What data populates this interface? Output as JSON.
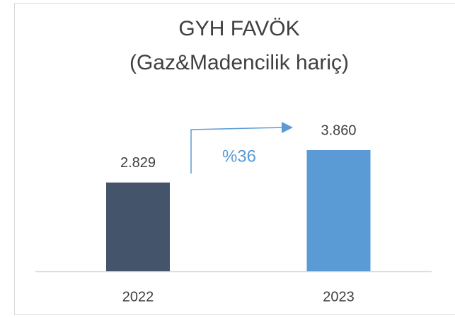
{
  "chart_data": {
    "type": "bar",
    "title": "GYH FAVÖK",
    "subtitle": "(Gaz&Madencilik hariç)",
    "categories": [
      "2022",
      "2023"
    ],
    "values": [
      2829,
      3860
    ],
    "value_labels": [
      "2.829",
      "3.860"
    ],
    "colors": [
      "#44546a",
      "#5b9bd5"
    ],
    "annotations": [
      {
        "text": "%36",
        "color": "#5b9bd5"
      }
    ]
  }
}
